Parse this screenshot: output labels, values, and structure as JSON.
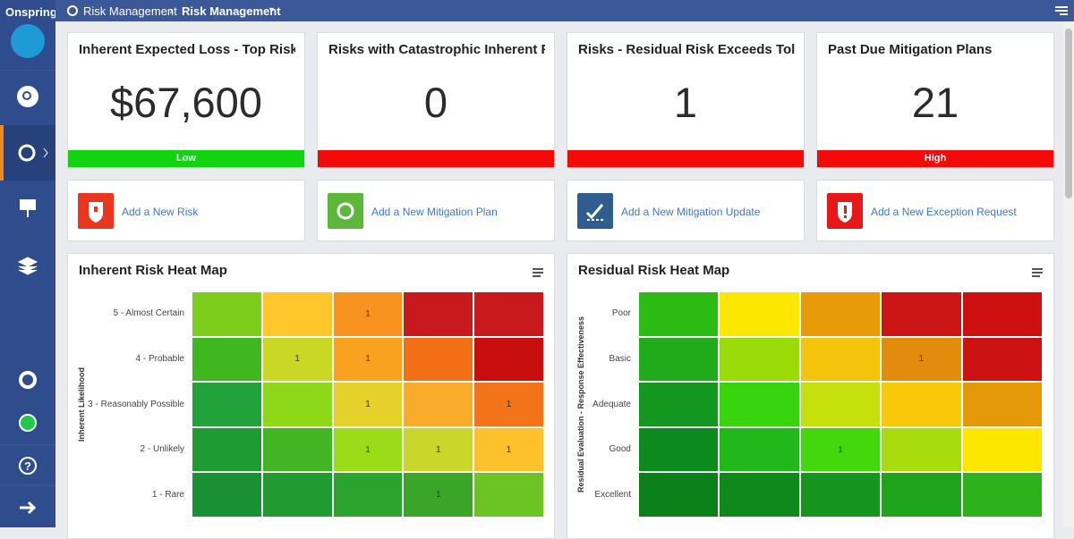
{
  "app": {
    "logo": "Onspring"
  },
  "breadcrumb": [
    "Risk Management",
    "Risk Management"
  ],
  "kpis": [
    {
      "title": "Inherent Expected Loss - Top Risks",
      "value": "$67,600",
      "status": "Low",
      "status_color": "#12d312"
    },
    {
      "title": "Risks with Catastrophic Inherent Ra...",
      "value": "0",
      "status": null,
      "status_color": "#f50a0a"
    },
    {
      "title": "Risks - Residual Risk Exceeds Toler...",
      "value": "1",
      "status": null,
      "status_color": "#f50a0a"
    },
    {
      "title": "Past Due Mitigation Plans",
      "value": "21",
      "status": "High",
      "status_color": "#f50a0a"
    }
  ],
  "actions": [
    {
      "label": "Add a New Risk",
      "color": "#e8361f"
    },
    {
      "label": "Add a New Mitigation Plan",
      "color": "#5cb73b"
    },
    {
      "label": "Add a New Mitigation Update",
      "color": "#2f5d8f"
    },
    {
      "label": "Add a New Exception Request",
      "color": "#e81818"
    }
  ],
  "heatmaps": [
    {
      "title": "Inherent Risk Heat Map",
      "y_axis_title": "Inherent Likelihood",
      "rows": [
        "5 - Almost Certain",
        "4 - Probable",
        "3 - Reasonably Possible",
        "2 - Unlikely",
        "1 - Rare"
      ],
      "colors": [
        [
          "#7ccd1c",
          "#ffc72c",
          "#f7931e",
          "#c8191e",
          "#c8191e"
        ],
        [
          "#3fb71e",
          "#c8d824",
          "#f9a21f",
          "#f26f16",
          "#c80d0d"
        ],
        [
          "#21a23a",
          "#8ed81a",
          "#e6d12a",
          "#f9ab2a",
          "#f2731a"
        ],
        [
          "#1e9b32",
          "#41b523",
          "#9bdc18",
          "#c9d72a",
          "#fcc12b"
        ],
        [
          "#1a9035",
          "#1f9b32",
          "#2ba42d",
          "#3ba52a",
          "#6cc424"
        ]
      ],
      "counts": [
        [
          null,
          null,
          1,
          null,
          null
        ],
        [
          null,
          1,
          1,
          null,
          null
        ],
        [
          null,
          null,
          1,
          null,
          1
        ],
        [
          null,
          null,
          1,
          1,
          1
        ],
        [
          null,
          null,
          null,
          1,
          null
        ]
      ]
    },
    {
      "title": "Residual Risk Heat Map",
      "y_axis_title": "Residual Evaluation - Response Effectiveness",
      "rows": [
        "Poor",
        "Basic",
        "Adequate",
        "Good",
        "Excellent"
      ],
      "colors": [
        [
          "#2cbb12",
          "#fce700",
          "#e89a08",
          "#cc1515",
          "#cc1010"
        ],
        [
          "#1fab1a",
          "#9cdb0a",
          "#f4c40c",
          "#e38b0c",
          "#cc1212"
        ],
        [
          "#14971f",
          "#38d40e",
          "#c6e00c",
          "#f9c808",
          "#e49a08"
        ],
        [
          "#0d8a1d",
          "#20b81a",
          "#43d80c",
          "#a8dc0c",
          "#fce600"
        ],
        [
          "#0b8019",
          "#0e8a1c",
          "#15951d",
          "#1fa51c",
          "#2db21c"
        ]
      ],
      "counts": [
        [
          null,
          null,
          null,
          null,
          null
        ],
        [
          null,
          null,
          null,
          1,
          null
        ],
        [
          null,
          null,
          null,
          null,
          null
        ],
        [
          null,
          null,
          1,
          null,
          null
        ],
        [
          null,
          null,
          null,
          null,
          null
        ]
      ]
    }
  ]
}
